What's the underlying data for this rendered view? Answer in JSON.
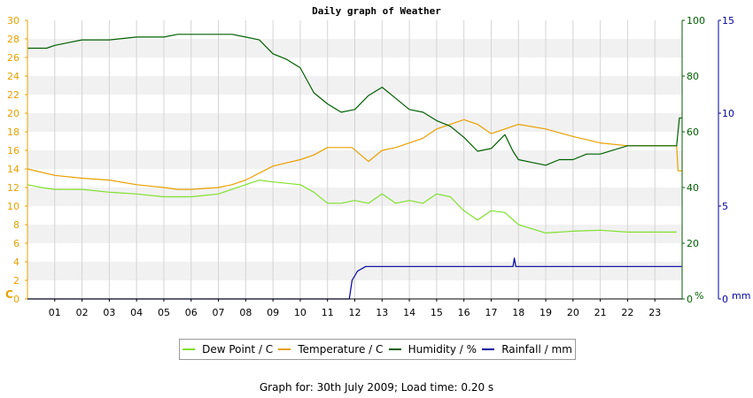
{
  "chart_data": {
    "type": "line",
    "title": "Daily graph of Weather",
    "x_ticks": [
      "01",
      "02",
      "03",
      "04",
      "05",
      "06",
      "07",
      "08",
      "09",
      "10",
      "11",
      "12",
      "13",
      "14",
      "15",
      "16",
      "17",
      "18",
      "19",
      "20",
      "21",
      "22",
      "23"
    ],
    "axes": {
      "left": {
        "unit": "C",
        "range": [
          0,
          30
        ],
        "ticks": [
          0,
          2,
          4,
          6,
          8,
          10,
          12,
          14,
          16,
          18,
          20,
          22,
          24,
          26,
          28,
          30
        ],
        "color": "#e8a000"
      },
      "right_humidity": {
        "unit": "%",
        "range": [
          0,
          100
        ],
        "ticks": [
          0,
          20,
          40,
          60,
          80,
          100
        ],
        "color": "#006000"
      },
      "right_rainfall": {
        "unit": "mm",
        "range": [
          0,
          15
        ],
        "ticks": [
          0,
          5,
          10,
          15
        ],
        "color": "#0000a0"
      }
    },
    "grid": true,
    "legend_position": "bottom",
    "series": [
      {
        "name": "Dew Point / C",
        "axis": "left",
        "color": "#80e030",
        "x": [
          0,
          0.5,
          1,
          2,
          3,
          4,
          5,
          6,
          7,
          8,
          8.5,
          9,
          10,
          10.5,
          11,
          11.5,
          12,
          12.5,
          13,
          13.5,
          14,
          14.5,
          15,
          15.5,
          16,
          16.5,
          17,
          17.5,
          18,
          19,
          20,
          21,
          22,
          23,
          23.8
        ],
        "y": [
          12.3,
          12.0,
          11.8,
          11.8,
          11.5,
          11.3,
          11.0,
          11.0,
          11.3,
          12.3,
          12.8,
          12.6,
          12.3,
          11.5,
          10.3,
          10.3,
          10.6,
          10.3,
          11.3,
          10.3,
          10.6,
          10.3,
          11.3,
          11.0,
          9.5,
          8.5,
          9.5,
          9.3,
          8.0,
          7.1,
          7.3,
          7.4,
          7.2,
          7.2,
          7.2
        ]
      },
      {
        "name": "Temperature / C",
        "axis": "left",
        "color": "#e8a000",
        "x": [
          0,
          1,
          2,
          3,
          4,
          5,
          5.5,
          6,
          7,
          7.5,
          8,
          9,
          10,
          10.5,
          11,
          11.5,
          11.9,
          12.3,
          12.5,
          13,
          13.5,
          14,
          14.5,
          15,
          15.5,
          16,
          16.5,
          17,
          17.5,
          18,
          19,
          20,
          21,
          22,
          23,
          23.8,
          23.85,
          24
        ],
        "y": [
          14.0,
          13.3,
          13.0,
          12.8,
          12.3,
          12.0,
          11.8,
          11.8,
          12.0,
          12.3,
          12.8,
          14.3,
          15.0,
          15.5,
          16.3,
          16.3,
          16.3,
          15.3,
          14.8,
          16.0,
          16.3,
          16.8,
          17.3,
          18.3,
          18.8,
          19.3,
          18.8,
          17.8,
          18.3,
          18.8,
          18.3,
          17.5,
          16.8,
          16.5,
          16.5,
          16.5,
          13.8,
          13.8
        ]
      },
      {
        "name": "Humidity / %",
        "axis": "right_humidity",
        "color": "#006000",
        "x": [
          0,
          0.7,
          1,
          1.5,
          2,
          3,
          4,
          5,
          5.5,
          6,
          7,
          7.5,
          8,
          8.5,
          9,
          9.5,
          10,
          10.5,
          11,
          11.5,
          12,
          12.5,
          13,
          13.5,
          14,
          14.5,
          15,
          15.5,
          16,
          16.5,
          17,
          17.5,
          17.8,
          18,
          18.5,
          19,
          19.5,
          20,
          20.5,
          21,
          22,
          23,
          23.8,
          23.9,
          24
        ],
        "y": [
          90,
          90,
          91,
          92,
          93,
          93,
          94,
          94,
          95,
          95,
          95,
          95,
          94,
          93,
          88,
          86,
          83,
          74,
          70,
          67,
          68,
          73,
          76,
          72,
          68,
          67,
          64,
          62,
          58,
          53,
          54,
          59,
          53,
          50,
          49,
          48,
          50,
          50,
          52,
          52,
          55,
          55,
          55,
          65,
          65
        ]
      },
      {
        "name": "Rainfall / mm",
        "axis": "right_rainfall",
        "color": "#0000a0",
        "x": [
          0,
          11.8,
          11.9,
          12.1,
          12.4,
          13,
          14,
          15,
          16,
          17,
          17.8,
          17.85,
          17.9,
          18,
          19,
          20,
          21,
          22,
          23,
          24
        ],
        "y": [
          0,
          0,
          1,
          1.5,
          1.75,
          1.75,
          1.75,
          1.75,
          1.75,
          1.75,
          1.75,
          2.2,
          1.75,
          1.75,
          1.75,
          1.75,
          1.75,
          1.75,
          1.75,
          1.75
        ]
      }
    ]
  },
  "legend": [
    {
      "label": "Dew Point / C",
      "color": "#80e030"
    },
    {
      "label": "Temperature / C",
      "color": "#e8a000"
    },
    {
      "label": "Humidity / %",
      "color": "#006000"
    },
    {
      "label": "Rainfall / mm",
      "color": "#0000a0"
    }
  ],
  "footer": {
    "text": "Graph for: 30th July 2009; Load time: 0.20 s"
  }
}
